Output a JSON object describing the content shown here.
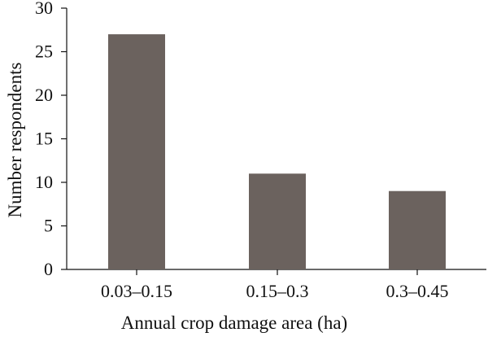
{
  "chart_data": {
    "type": "bar",
    "title": "",
    "xlabel": "Annual crop damage area (ha)",
    "ylabel": "Number respondents",
    "categories": [
      "0.03–0.15",
      "0.15–0.3",
      "0.3–0.45"
    ],
    "values": [
      27,
      11,
      9
    ],
    "ylim": [
      0,
      30
    ],
    "yticks": [
      "0",
      "5",
      "10",
      "15",
      "20",
      "25",
      "30"
    ],
    "grid": false,
    "legend": "none",
    "colors": {
      "bar": "#6b625e",
      "axis": "#111111"
    }
  }
}
